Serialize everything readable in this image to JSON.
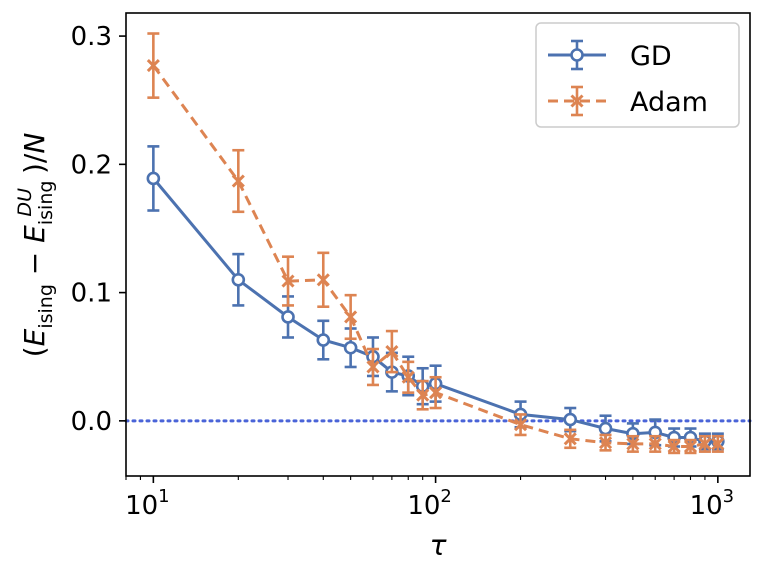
{
  "chart_data": {
    "type": "line",
    "xscale": "log",
    "xlim": [
      8,
      1300
    ],
    "ylim": [
      -0.043,
      0.318
    ],
    "xlabel": "τ",
    "ylabel": "(E_ising − E_ising^DU)/N",
    "x_ticks": [
      {
        "value": 10,
        "base": "10",
        "exp": "1"
      },
      {
        "value": 100,
        "base": "10",
        "exp": "2"
      },
      {
        "value": 1000,
        "base": "10",
        "exp": "3"
      }
    ],
    "y_ticks": [
      {
        "value": 0.0,
        "label": "0.0"
      },
      {
        "value": 0.1,
        "label": "0.1"
      },
      {
        "value": 0.2,
        "label": "0.2"
      },
      {
        "value": 0.3,
        "label": "0.3"
      }
    ],
    "reference_line": {
      "y": 0.0,
      "style": "dotted",
      "color": "#4a64d8"
    },
    "legend": {
      "position": "top-right"
    },
    "x": [
      10,
      20,
      30,
      40,
      50,
      60,
      70,
      80,
      90,
      100,
      200,
      300,
      400,
      500,
      600,
      700,
      800,
      900,
      1000
    ],
    "series": [
      {
        "name": "GD",
        "color": "#4c72b0",
        "marker": "circle",
        "line": "solid",
        "values": [
          0.189,
          0.11,
          0.081,
          0.063,
          0.057,
          0.05,
          0.038,
          0.035,
          0.027,
          0.029,
          0.005,
          0.001,
          -0.006,
          -0.01,
          -0.009,
          -0.013,
          -0.013,
          -0.016,
          -0.016
        ],
        "errors": [
          0.025,
          0.02,
          0.016,
          0.015,
          0.015,
          0.015,
          0.015,
          0.015,
          0.014,
          0.014,
          0.01,
          0.009,
          0.01,
          0.008,
          0.01,
          0.007,
          0.007,
          0.006,
          0.006
        ]
      },
      {
        "name": "Adam",
        "color": "#dd8452",
        "marker": "x",
        "line": "dashed",
        "values": [
          0.277,
          0.187,
          0.109,
          0.11,
          0.081,
          0.042,
          0.054,
          0.034,
          0.02,
          0.022,
          -0.003,
          -0.014,
          -0.017,
          -0.018,
          -0.018,
          -0.02,
          -0.02,
          -0.018,
          -0.018
        ],
        "errors": [
          0.025,
          0.024,
          0.019,
          0.021,
          0.017,
          0.014,
          0.016,
          0.012,
          0.011,
          0.012,
          0.008,
          0.007,
          0.006,
          0.006,
          0.006,
          0.005,
          0.005,
          0.006,
          0.006
        ]
      }
    ]
  }
}
